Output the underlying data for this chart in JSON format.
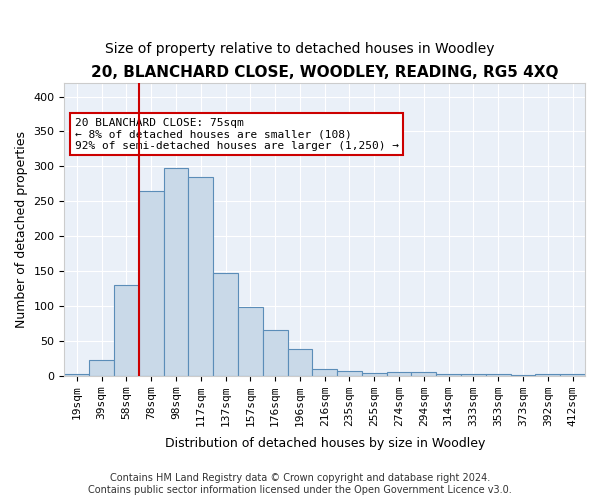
{
  "title": "20, BLANCHARD CLOSE, WOODLEY, READING, RG5 4XQ",
  "subtitle": "Size of property relative to detached houses in Woodley",
  "xlabel": "Distribution of detached houses by size in Woodley",
  "ylabel": "Number of detached properties",
  "footer1": "Contains HM Land Registry data © Crown copyright and database right 2024.",
  "footer2": "Contains public sector information licensed under the Open Government Licence v3.0.",
  "bin_labels": [
    "19sqm",
    "39sqm",
    "58sqm",
    "78sqm",
    "98sqm",
    "117sqm",
    "137sqm",
    "157sqm",
    "176sqm",
    "196sqm",
    "216sqm",
    "235sqm",
    "255sqm",
    "274sqm",
    "294sqm",
    "314sqm",
    "333sqm",
    "353sqm",
    "373sqm",
    "392sqm",
    "412sqm"
  ],
  "bar_values": [
    3,
    22,
    130,
    265,
    298,
    285,
    147,
    98,
    65,
    38,
    9,
    6,
    4,
    5,
    5,
    3,
    2,
    2,
    1,
    2,
    2
  ],
  "bar_color": "#c9d9e8",
  "bar_edge_color": "#5b8db8",
  "property_line_bin_index": 3,
  "annotation_text": "20 BLANCHARD CLOSE: 75sqm\n← 8% of detached houses are smaller (108)\n92% of semi-detached houses are larger (1,250) →",
  "annotation_box_color": "#ffffff",
  "annotation_box_edge": "#cc0000",
  "vline_color": "#cc0000",
  "ylim": [
    0,
    420
  ],
  "background_color": "#eaf0f8",
  "grid_color": "#ffffff",
  "title_fontsize": 11,
  "subtitle_fontsize": 10,
  "axis_label_fontsize": 9,
  "tick_fontsize": 8,
  "annotation_fontsize": 8,
  "footer_fontsize": 7
}
